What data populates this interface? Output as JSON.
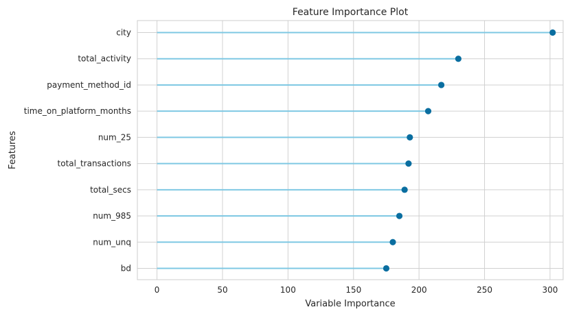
{
  "chart_data": {
    "type": "lollipop",
    "title": "Feature Importance Plot",
    "xlabel": "Variable Importance",
    "ylabel": "Features",
    "xlim": [
      -15,
      310
    ],
    "xticks": [
      0,
      50,
      100,
      150,
      200,
      250,
      300
    ],
    "grid": true,
    "categories": [
      "city",
      "total_activity",
      "payment_method_id",
      "time_on_platform_months",
      "num_25",
      "total_transactions",
      "total_secs",
      "num_985",
      "num_unq",
      "bd"
    ],
    "values": [
      302,
      230,
      217,
      207,
      193,
      192,
      189,
      185,
      180,
      175
    ],
    "colors": {
      "stem": "#7ec8e3",
      "marker": "#0a6ea0",
      "grid": "#d0d0d0",
      "frame": "#cccccc"
    }
  }
}
